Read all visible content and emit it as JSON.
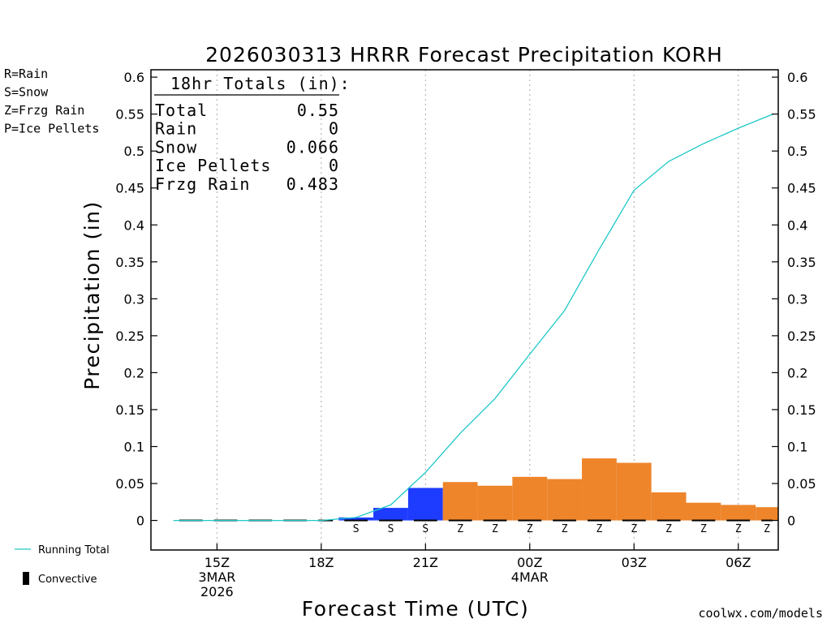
{
  "chart_data": {
    "type": "bar",
    "title": "2026030313 HRRR Forecast Precipitation KORH",
    "xlabel": "Forecast Time (UTC)",
    "ylabel": "Precipitation  (in)",
    "ylim": [
      -0.04,
      0.61
    ],
    "xlim": [
      13.1,
      31.15
    ],
    "y_ticks": [
      0,
      0.05,
      0.1,
      0.15,
      0.2,
      0.25,
      0.3,
      0.35,
      0.4,
      0.45,
      0.5,
      0.55,
      0.6
    ],
    "y_tick_labels": [
      "0",
      "0.05",
      "0.1",
      "0.15",
      "0.2",
      "0.25",
      "0.3",
      "0.35",
      "0.4",
      "0.45",
      "0.5",
      "0.55",
      "0.6"
    ],
    "x_ticks": [
      {
        "hour": 15,
        "lines": [
          "15Z",
          "3MAR",
          "2026"
        ]
      },
      {
        "hour": 18,
        "lines": [
          "18Z"
        ]
      },
      {
        "hour": 21,
        "lines": [
          "21Z"
        ]
      },
      {
        "hour": 24,
        "lines": [
          "00Z",
          "4MAR"
        ]
      },
      {
        "hour": 27,
        "lines": [
          "03Z"
        ]
      },
      {
        "hour": 30,
        "lines": [
          "06Z"
        ]
      }
    ],
    "bars": [
      {
        "start": 13.75,
        "end": 14.75,
        "value": 0.0,
        "type": "none",
        "letter": ""
      },
      {
        "start": 14.75,
        "end": 15.75,
        "value": 0.0,
        "type": "none",
        "letter": ""
      },
      {
        "start": 15.75,
        "end": 16.75,
        "value": 0.0,
        "type": "none",
        "letter": ""
      },
      {
        "start": 16.75,
        "end": 17.75,
        "value": 0.0,
        "type": "none",
        "letter": ""
      },
      {
        "start": 17.75,
        "end": 18.5,
        "value": 0.0,
        "type": "none",
        "letter": ""
      },
      {
        "start": 18.5,
        "end": 19.5,
        "value": 0.004,
        "type": "snow",
        "letter": "S"
      },
      {
        "start": 19.5,
        "end": 20.5,
        "value": 0.017,
        "type": "snow",
        "letter": "S"
      },
      {
        "start": 20.5,
        "end": 21.5,
        "value": 0.044,
        "type": "snow",
        "letter": "S"
      },
      {
        "start": 21.5,
        "end": 22.5,
        "value": 0.052,
        "type": "frzg",
        "letter": "Z"
      },
      {
        "start": 22.5,
        "end": 23.5,
        "value": 0.047,
        "type": "frzg",
        "letter": "Z"
      },
      {
        "start": 23.5,
        "end": 24.5,
        "value": 0.059,
        "type": "frzg",
        "letter": "Z"
      },
      {
        "start": 24.5,
        "end": 25.5,
        "value": 0.056,
        "type": "frzg",
        "letter": "Z"
      },
      {
        "start": 25.5,
        "end": 26.5,
        "value": 0.084,
        "type": "frzg",
        "letter": "Z"
      },
      {
        "start": 26.5,
        "end": 27.5,
        "value": 0.078,
        "type": "frzg",
        "letter": "Z"
      },
      {
        "start": 27.5,
        "end": 28.5,
        "value": 0.038,
        "type": "frzg",
        "letter": "Z"
      },
      {
        "start": 28.5,
        "end": 29.5,
        "value": 0.024,
        "type": "frzg",
        "letter": "Z"
      },
      {
        "start": 29.5,
        "end": 30.5,
        "value": 0.021,
        "type": "frzg",
        "letter": "Z"
      },
      {
        "start": 30.5,
        "end": 31.5,
        "value": 0.018,
        "type": "frzg",
        "letter": "Z"
      }
    ],
    "running_total": {
      "name": "Running Total",
      "x": [
        13.75,
        14,
        15,
        16,
        17,
        18,
        19,
        20,
        21,
        22,
        23,
        24,
        25,
        26,
        27,
        28,
        29,
        30,
        31
      ],
      "y": [
        0,
        0,
        0,
        0,
        0,
        0,
        0.004,
        0.021,
        0.065,
        0.118,
        0.165,
        0.225,
        0.284,
        0.367,
        0.447,
        0.486,
        0.51,
        0.531,
        0.55
      ]
    },
    "convective": {
      "label": "Convective",
      "color": "#000000"
    },
    "totals_box": {
      "heading": "18hr Totals (in):",
      "rows": [
        {
          "label": "Total",
          "value": "0.55"
        },
        {
          "label": "Rain",
          "value": "0"
        },
        {
          "label": "Snow",
          "value": "0.066"
        },
        {
          "label": "Ice Pellets",
          "value": "0"
        },
        {
          "label": "Frzg Rain",
          "value": "0.483"
        }
      ]
    },
    "legend": [
      {
        "text": "R=Rain",
        "color": "#33dd33"
      },
      {
        "text": "S=Snow",
        "color": "#3344ee"
      },
      {
        "text": "Z=Frzg Rain",
        "color": "#ee8833"
      },
      {
        "text": "P=Ice Pellets",
        "color": "#ee3399"
      }
    ],
    "bottom_legend": [
      {
        "key": "running",
        "text": "Running Total"
      },
      {
        "key": "convective",
        "text": "Convective"
      }
    ],
    "colors": {
      "snow": "#1e3cff",
      "frzg": "#ee852b",
      "rain": "#33dd33",
      "ice": "#ee3399",
      "running": "#1ec8c8"
    },
    "credit": "coolwx.com/models",
    "credit_color": "#e02030"
  }
}
